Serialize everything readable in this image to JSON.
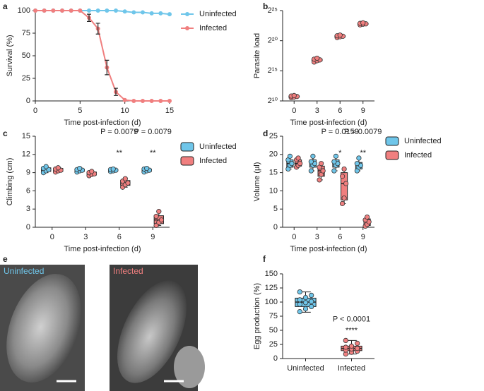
{
  "chart_data": [
    {
      "type": "line",
      "panel": "a",
      "xlabel": "Time post-infection (d)",
      "ylabel": "Survival (%)",
      "x": [
        0,
        1,
        2,
        3,
        4,
        5,
        6,
        7,
        8,
        9,
        10,
        11,
        12,
        13,
        14,
        15
      ],
      "xlim": [
        0,
        15
      ],
      "xticks": [
        0,
        5,
        10,
        15
      ],
      "ylim": [
        0,
        100
      ],
      "yticks": [
        0,
        25,
        50,
        75,
        100
      ],
      "series": [
        {
          "name": "Uninfected",
          "color": "#6fc6ea",
          "values": [
            100,
            100,
            100,
            100,
            100,
            100,
            100,
            100,
            100,
            100,
            99,
            98,
            98,
            97,
            97,
            96
          ]
        },
        {
          "name": "Infected",
          "color": "#f07f7f",
          "values": [
            100,
            100,
            100,
            100,
            100,
            100,
            92,
            80,
            37,
            10,
            1,
            0,
            0,
            0,
            0,
            0
          ],
          "errors": [
            null,
            null,
            null,
            null,
            null,
            null,
            4,
            6,
            8,
            4,
            null,
            null,
            null,
            null,
            null,
            null
          ]
        }
      ]
    },
    {
      "type": "box",
      "panel": "b",
      "xlabel": "Time post-infection (d)",
      "ylabel": "Parasite load",
      "log_base": 2,
      "categories": [
        "0",
        "3",
        "6",
        "9"
      ],
      "ylim": [
        1024,
        33554432
      ],
      "yticks": [
        {
          "value": 1024,
          "label": "2¹⁰"
        },
        {
          "value": 32768,
          "label": "2¹⁵"
        },
        {
          "value": 1048576,
          "label": "2²⁰"
        },
        {
          "value": 33554432,
          "label": "2²⁵"
        }
      ],
      "series": [
        {
          "color": "#f07f7f",
          "points": [
            [
              1500,
              1600,
              1700,
              1800,
              1900
            ],
            [
              90000,
              105000,
              115000,
              125000,
              140000
            ],
            [
              1500000,
              1650000,
              1750000,
              1850000,
              2000000
            ],
            [
              6500000,
              7000000,
              7300000,
              7700000,
              8200000
            ]
          ],
          "box": [
            [
              1500,
              1600,
              1700,
              1800,
              1900
            ],
            [
              90000,
              105000,
              115000,
              125000,
              140000
            ],
            [
              1500000,
              1650000,
              1750000,
              1850000,
              2000000
            ],
            [
              6500000,
              7000000,
              7300000,
              7700000,
              8200000
            ]
          ]
        }
      ]
    },
    {
      "type": "box",
      "panel": "c",
      "xlabel": "Time post-infection (d)",
      "ylabel": "Climbing (cm)",
      "categories": [
        "0",
        "3",
        "6",
        "9"
      ],
      "ylim": [
        0,
        15
      ],
      "yticks": [
        0,
        3,
        6,
        9,
        12,
        15
      ],
      "annotations": [
        null,
        null,
        {
          "p": "P = 0.0079",
          "stars": "**"
        },
        {
          "p": "P = 0.0079",
          "stars": "**"
        }
      ],
      "series": [
        {
          "name": "Uninfected",
          "color": "#6fc6ea",
          "points": [
            [
              9.0,
              9.3,
              9.5,
              9.7,
              10.0
            ],
            [
              9.1,
              9.3,
              9.4,
              9.5,
              9.7
            ],
            [
              9.2,
              9.3,
              9.4,
              9.5,
              9.6
            ],
            [
              9.1,
              9.3,
              9.4,
              9.6,
              9.7
            ]
          ],
          "box": [
            [
              9.0,
              9.2,
              9.5,
              9.8,
              10.0
            ],
            [
              9.1,
              9.2,
              9.4,
              9.6,
              9.7
            ],
            [
              9.2,
              9.3,
              9.4,
              9.5,
              9.6
            ],
            [
              9.1,
              9.2,
              9.4,
              9.6,
              9.7
            ]
          ]
        },
        {
          "name": "Infected",
          "color": "#f07f7f",
          "points": [
            [
              9.1,
              9.3,
              9.4,
              9.6,
              9.8
            ],
            [
              8.5,
              8.7,
              8.8,
              9.0,
              9.2
            ],
            [
              6.6,
              7.0,
              7.3,
              7.6,
              8.0
            ],
            [
              0.3,
              0.8,
              1.2,
              1.8,
              2.6
            ]
          ],
          "box": [
            [
              9.1,
              9.2,
              9.4,
              9.7,
              9.8
            ],
            [
              8.5,
              8.6,
              8.8,
              9.1,
              9.2
            ],
            [
              6.6,
              6.9,
              7.3,
              7.7,
              8.0
            ],
            [
              0.3,
              0.6,
              1.2,
              1.9,
              2.6
            ]
          ]
        }
      ]
    },
    {
      "type": "box",
      "panel": "d",
      "xlabel": "Time post-infection (d)",
      "ylabel": "Volume (µl)",
      "categories": [
        "0",
        "3",
        "6",
        "9"
      ],
      "ylim": [
        0,
        25
      ],
      "yticks": [
        0,
        5,
        10,
        15,
        20,
        25
      ],
      "annotations": [
        null,
        null,
        {
          "p": "P = 0.0159",
          "stars": "*"
        },
        {
          "p": "P = 0.0079",
          "stars": "**"
        }
      ],
      "series": [
        {
          "name": "Uninfected",
          "color": "#6fc6ea",
          "points": [
            [
              16,
              17,
              17.5,
              18.5,
              19.5
            ],
            [
              15.5,
              17,
              17.5,
              18,
              19.5
            ],
            [
              15.5,
              17,
              17.5,
              18,
              19.5
            ],
            [
              15.5,
              16.5,
              17,
              17.5,
              19
            ]
          ],
          "box": [
            [
              16,
              16.5,
              17.5,
              18.5,
              19.5
            ],
            [
              15.5,
              16.5,
              17.5,
              18.5,
              19.5
            ],
            [
              15.5,
              16.5,
              17.5,
              18.5,
              19.5
            ],
            [
              15.5,
              16,
              17,
              17.8,
              19
            ]
          ]
        },
        {
          "name": "Infected",
          "color": "#f07f7f",
          "points": [
            [
              16.5,
              17,
              17.5,
              18.5,
              19
            ],
            [
              13,
              14.5,
              15.5,
              16.5,
              17.5
            ],
            [
              6.5,
              8,
              12,
              14,
              16
            ],
            [
              0.3,
              0.8,
              1.5,
              2,
              2.8
            ]
          ],
          "box": [
            [
              16.5,
              16.8,
              17.5,
              18.5,
              19
            ],
            [
              13,
              14,
              15.5,
              16.8,
              17.5
            ],
            [
              6.5,
              7.5,
              12,
              15,
              16
            ],
            [
              0.3,
              0.5,
              1.5,
              2.3,
              2.8
            ]
          ]
        }
      ]
    },
    {
      "type": "image",
      "panel": "e",
      "labels": [
        "Uninfected",
        "Infected"
      ]
    },
    {
      "type": "box",
      "panel": "f",
      "ylabel": "Egg production (%)",
      "categories": [
        "Uninfected",
        "Infected"
      ],
      "colors": [
        "#6fc6ea",
        "#f07f7f"
      ],
      "ylim": [
        0,
        150
      ],
      "yticks": [
        0,
        25,
        50,
        75,
        100,
        125,
        150
      ],
      "annotations": [
        null,
        {
          "p": "P < 0.0001",
          "stars": "****"
        }
      ],
      "series": [
        {
          "points": [
            [
              83,
              88,
              92,
              96,
              99,
              101,
              104,
              108,
              112,
              118
            ],
            [
              8,
              11,
              13,
              15,
              17,
              18,
              20,
              22,
              27,
              32
            ]
          ],
          "box": [
            [
              82,
              92,
              100,
              107,
              118
            ],
            [
              8,
              14,
              18,
              22,
              32
            ]
          ]
        }
      ]
    }
  ]
}
